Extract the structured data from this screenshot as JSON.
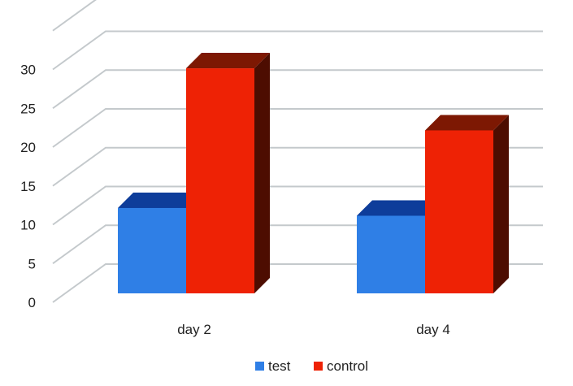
{
  "chart_data": {
    "type": "bar",
    "title": "",
    "xlabel": "",
    "ylabel": "",
    "categories": [
      "day 2",
      "day 4"
    ],
    "series": [
      {
        "name": "test",
        "values": [
          11,
          10
        ]
      },
      {
        "name": "control",
        "values": [
          29,
          21
        ]
      }
    ],
    "ylim": [
      0,
      30
    ],
    "yticks": [
      "0",
      "5",
      "10",
      "15",
      "20",
      "25",
      "30"
    ],
    "grid": true,
    "legend_position": "bottom",
    "three_d": true
  },
  "colors": {
    "test": {
      "front": "#2f7fe6",
      "top": "#0e3d9a",
      "side": "#0b2f7a"
    },
    "control": {
      "front": "#ee2205",
      "top": "#7d1803",
      "side": "#4d0d01"
    },
    "grid": "#c4c9cc"
  }
}
